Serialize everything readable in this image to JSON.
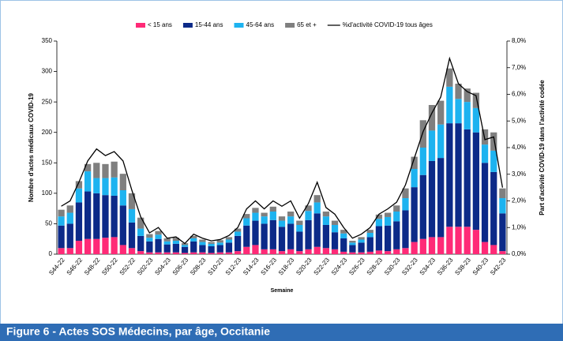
{
  "chart_data": {
    "type": "bar",
    "title": "Figure 6 - Actes SOS Médecins, par âge, Occitanie",
    "ylabel": "Nombre d'actes médicaux COVID-19",
    "y2label": "Part d'activité COVID-19 dans l'activité codée",
    "xlabel": "Semaine",
    "stacked": true,
    "categories": [
      "S44-22",
      null,
      "S46-22",
      null,
      "S48-22",
      null,
      "S50-22",
      null,
      "S52-22",
      null,
      "S02-23",
      null,
      "S04-23",
      null,
      "S06-23",
      null,
      "S08-23",
      null,
      "S10-23",
      null,
      "S12-23",
      null,
      "S14-23",
      null,
      "S16-23",
      null,
      "S18-23",
      null,
      "S20-23",
      null,
      "S22-23",
      null,
      "S24-23",
      null,
      "S26-23",
      null,
      "S28-23",
      null,
      "S30-23",
      null,
      "S32-23",
      null,
      "S34-23",
      null,
      "S36-23",
      null,
      "S38-23",
      null,
      "S40-23",
      null,
      "S42-23"
    ],
    "series": [
      {
        "name": "< 15 ans",
        "color": "#ff2a77",
        "values": [
          10,
          10,
          22,
          25,
          25,
          27,
          28,
          15,
          10,
          5,
          3,
          3,
          3,
          3,
          2,
          3,
          3,
          2,
          3,
          3,
          5,
          12,
          15,
          8,
          8,
          5,
          8,
          5,
          8,
          12,
          10,
          8,
          4,
          3,
          3,
          4,
          6,
          5,
          8,
          10,
          20,
          25,
          28,
          28,
          45,
          45,
          45,
          40,
          20,
          15,
          5
        ]
      },
      {
        "name": "15-44 ans",
        "color": "#0c2a88",
        "values": [
          37,
          40,
          63,
          78,
          75,
          70,
          68,
          65,
          42,
          25,
          18,
          22,
          13,
          14,
          10,
          18,
          12,
          11,
          12,
          16,
          25,
          35,
          40,
          42,
          48,
          40,
          42,
          32,
          48,
          55,
          38,
          28,
          22,
          12,
          16,
          24,
          40,
          42,
          46,
          62,
          90,
          105,
          125,
          130,
          170,
          170,
          160,
          160,
          130,
          120,
          62
        ]
      },
      {
        "name": "45-64 ans",
        "color": "#1db3f0",
        "values": [
          15,
          18,
          23,
          33,
          25,
          28,
          30,
          25,
          22,
          12,
          6,
          7,
          5,
          5,
          3,
          5,
          5,
          4,
          4,
          5,
          7,
          12,
          13,
          12,
          14,
          10,
          12,
          11,
          15,
          18,
          14,
          12,
          8,
          4,
          5,
          7,
          12,
          14,
          16,
          20,
          30,
          45,
          50,
          55,
          60,
          40,
          45,
          40,
          30,
          35,
          25
        ]
      },
      {
        "name": "65 et +",
        "color": "#7f7f7f",
        "values": [
          11,
          12,
          12,
          12,
          25,
          23,
          26,
          27,
          26,
          18,
          6,
          6,
          5,
          5,
          3,
          4,
          4,
          3,
          4,
          4,
          5,
          7,
          8,
          6,
          8,
          7,
          8,
          7,
          9,
          12,
          8,
          7,
          6,
          3,
          4,
          5,
          7,
          7,
          10,
          16,
          20,
          45,
          42,
          39,
          30,
          25,
          22,
          25,
          25,
          30,
          16
        ]
      },
      {
        "name": "%d'activité COVID-19 tous âges",
        "type": "line",
        "axis": "y2",
        "color": "#000000",
        "values": [
          1.8,
          2.0,
          2.7,
          3.5,
          3.95,
          3.7,
          3.85,
          3.5,
          2.4,
          1.4,
          0.8,
          1.0,
          0.6,
          0.65,
          0.4,
          0.75,
          0.6,
          0.5,
          0.55,
          0.7,
          1.0,
          1.7,
          2.0,
          1.7,
          2.0,
          1.8,
          2.0,
          1.35,
          1.9,
          2.7,
          1.75,
          1.5,
          1.0,
          0.6,
          0.75,
          1.0,
          1.5,
          1.7,
          1.95,
          2.6,
          3.6,
          4.6,
          5.3,
          5.9,
          7.35,
          6.4,
          6.1,
          5.95,
          4.3,
          4.4,
          2.5
        ]
      }
    ],
    "ylim": [
      0,
      350
    ],
    "yticks": [
      0,
      50,
      100,
      150,
      200,
      250,
      300,
      350
    ],
    "y2lim": [
      0,
      8
    ],
    "y2ticks": [
      {
        "value": 0,
        "label": "0,0%"
      },
      {
        "value": 1,
        "label": "1,0%"
      },
      {
        "value": 2,
        "label": "2,0%"
      },
      {
        "value": 3,
        "label": "3,0%"
      },
      {
        "value": 4,
        "label": "4,0%"
      },
      {
        "value": 5,
        "label": "5,0%"
      },
      {
        "value": 6,
        "label": "6,0%"
      },
      {
        "value": 7,
        "label": "7,0%"
      },
      {
        "value": 8,
        "label": "8,0%"
      }
    ],
    "legend": "top"
  }
}
